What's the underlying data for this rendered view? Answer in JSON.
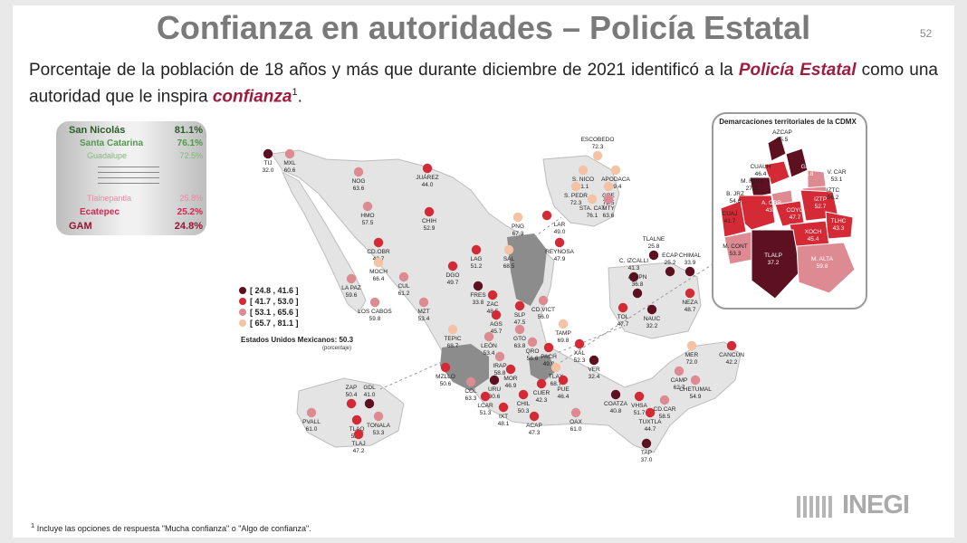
{
  "slide": {
    "title": "Confianza en autoridades – Policía Estatal",
    "page_number": "52",
    "subtitle_parts": {
      "a": "Porcentaje de la población de 18 años y más que durante diciembre de 2021 identificó a la ",
      "b": "Policía Estatal",
      "c": " como una autoridad que le inspira ",
      "d": "confianza",
      "e": "1",
      "f": "."
    },
    "footnote_mark": "1",
    "footnote": "Incluye las opciones de respuesta \"Mucha confianza\" o \"Algo de confianza\".",
    "logo_text": "INEGI"
  },
  "ranking": [
    {
      "name": "San Nicolás",
      "value": "81.1%",
      "color": "#2b5d2b"
    },
    {
      "name": "Santa Catarina",
      "value": "76.1%",
      "color": "#4f9a4a"
    },
    {
      "name": "Guadalupe",
      "value": "72.5%",
      "color": "#7fb878"
    },
    {
      "name": "Tlalnepantla",
      "value": "25.8%",
      "color": "#e88aa6"
    },
    {
      "name": "Ecatepec",
      "value": "25.2%",
      "color": "#d9254f"
    },
    {
      "name": "GAM",
      "value": "24.8%",
      "color": "#9a1230"
    }
  ],
  "legend": {
    "items": [
      {
        "label": "[ 24.8 , 41.6 ]",
        "color": "#5c1020"
      },
      {
        "label": "[ 41.7 , 53.0 ]",
        "color": "#d42a35"
      },
      {
        "label": "[ 53.1 , 65.6 ]",
        "color": "#de8a92"
      },
      {
        "label": "[ 65.7 , 81.1 ]",
        "color": "#f5c2a4"
      }
    ],
    "national_label": "Estados Unidos Mexicanos:",
    "national_value": "50.3",
    "national_unit": "(porcentaje)"
  },
  "cdmx": {
    "title": "Demarcaciones territoriales de la CDMX"
  },
  "chart_data": {
    "type": "map",
    "title": "Confianza en autoridades – Policía Estatal",
    "unit": "porcentaje",
    "cities": [
      {
        "name": "TIJ",
        "value": 32.0
      },
      {
        "name": "MXL",
        "value": 60.6
      },
      {
        "name": "NOG",
        "value": 63.6
      },
      {
        "name": "HMO",
        "value": 57.5
      },
      {
        "name": "JUÁREZ",
        "value": 44.0
      },
      {
        "name": "CHIH",
        "value": 52.9
      },
      {
        "name": "CD.OBR",
        "value": 42.7
      },
      {
        "name": "MOCH",
        "value": 66.4
      },
      {
        "name": "LA PAZ",
        "value": 59.6
      },
      {
        "name": "LOS CABOS",
        "value": 59.8
      },
      {
        "name": "CUL",
        "value": 61.2
      },
      {
        "name": "MZT",
        "value": 53.4
      },
      {
        "name": "DGO",
        "value": 49.7
      },
      {
        "name": "LAG",
        "value": 51.2
      },
      {
        "name": "SAL",
        "value": 68.5
      },
      {
        "name": "PNG",
        "value": 67.3
      },
      {
        "name": "LAR",
        "value": 49.0
      },
      {
        "name": "REYNOSA",
        "value": 47.9
      },
      {
        "name": "ESCOBEDO",
        "value": 72.3
      },
      {
        "name": "S. NICO",
        "value": 81.1
      },
      {
        "name": "APODACA",
        "value": 69.4
      },
      {
        "name": "S. PEDR",
        "value": 72.3
      },
      {
        "name": "GPE",
        "value": 72.5
      },
      {
        "name": "STA. CAT",
        "value": 76.1
      },
      {
        "name": "MTY",
        "value": 63.6
      },
      {
        "name": "FRES",
        "value": 33.8
      },
      {
        "name": "ZAC",
        "value": 48.5
      },
      {
        "name": "AGS",
        "value": 45.7
      },
      {
        "name": "SLP",
        "value": 47.5
      },
      {
        "name": "CD.VICT",
        "value": 56.0
      },
      {
        "name": "TEPIC",
        "value": 68.7
      },
      {
        "name": "GTO",
        "value": 63.8
      },
      {
        "name": "TAMP",
        "value": 69.8
      },
      {
        "name": "LEÓN",
        "value": 53.4
      },
      {
        "name": "IRAP",
        "value": 58.8
      },
      {
        "name": "QRO",
        "value": 56.6
      },
      {
        "name": "PACH",
        "value": 49.9
      },
      {
        "name": "XAL",
        "value": 52.3
      },
      {
        "name": "MOR",
        "value": 46.9
      },
      {
        "name": "TLAX",
        "value": 68.7
      },
      {
        "name": "VER",
        "value": 32.4
      },
      {
        "name": "URU",
        "value": 30.6
      },
      {
        "name": "MZLLO",
        "value": 50.6
      },
      {
        "name": "COL",
        "value": 63.3
      },
      {
        "name": "CUER",
        "value": 42.3
      },
      {
        "name": "PUE",
        "value": 46.4
      },
      {
        "name": "LCAR",
        "value": 51.3
      },
      {
        "name": "CHIL",
        "value": 50.3
      },
      {
        "name": "IXT",
        "value": 48.1
      },
      {
        "name": "ACAP",
        "value": 47.3
      },
      {
        "name": "OAX",
        "value": 61.0
      },
      {
        "name": "COATZA",
        "value": 40.8
      },
      {
        "name": "VHSA",
        "value": 51.7
      },
      {
        "name": "CD.CAR",
        "value": 58.5
      },
      {
        "name": "TUXTLA",
        "value": 44.7
      },
      {
        "name": "TAP",
        "value": 37.0
      },
      {
        "name": "CAMP",
        "value": 62.7
      },
      {
        "name": "MER",
        "value": 72.0
      },
      {
        "name": "CANCÚN",
        "value": 42.2
      },
      {
        "name": "CHETUMAL",
        "value": 54.9
      },
      {
        "name": "ZAP",
        "value": 50.4
      },
      {
        "name": "GDL",
        "value": 41.0
      },
      {
        "name": "PVALL",
        "value": 61.0
      },
      {
        "name": "TLAQ",
        "value": 52.8
      },
      {
        "name": "TONALA",
        "value": 53.3
      },
      {
        "name": "TLAJ",
        "value": 47.2
      },
      {
        "name": "TLALNE",
        "value": 25.8
      },
      {
        "name": "C. IZCALLI",
        "value": 41.3
      },
      {
        "name": "ECAP",
        "value": 25.2
      },
      {
        "name": "CHIMAL",
        "value": 33.9
      },
      {
        "name": "ATZPN",
        "value": 36.8
      },
      {
        "name": "NEZA",
        "value": 48.7
      },
      {
        "name": "TOL",
        "value": 47.7
      },
      {
        "name": "NAUC",
        "value": 32.2
      }
    ],
    "cdmx_demarcaciones": [
      {
        "name": "AZCAP",
        "value": 35.5
      },
      {
        "name": "GAM",
        "value": 24.8
      },
      {
        "name": "CUAUH",
        "value": 46.4
      },
      {
        "name": "V. CAR",
        "value": 53.1
      },
      {
        "name": "M. HGO",
        "value": 27.2
      },
      {
        "name": "IZTC",
        "value": 56.2
      },
      {
        "name": "B. JRZ",
        "value": 54.6
      },
      {
        "name": "A. OBR",
        "value": 43.7
      },
      {
        "name": "COYO",
        "value": 47.7
      },
      {
        "name": "IZTP",
        "value": 52.7
      },
      {
        "name": "CUAJ",
        "value": 41.7
      },
      {
        "name": "TLHC",
        "value": 43.3
      },
      {
        "name": "XOCH",
        "value": 45.4
      },
      {
        "name": "M. CONT",
        "value": 53.3
      },
      {
        "name": "TLALP",
        "value": 37.2
      },
      {
        "name": "M. ALTA",
        "value": 59.8
      }
    ]
  }
}
